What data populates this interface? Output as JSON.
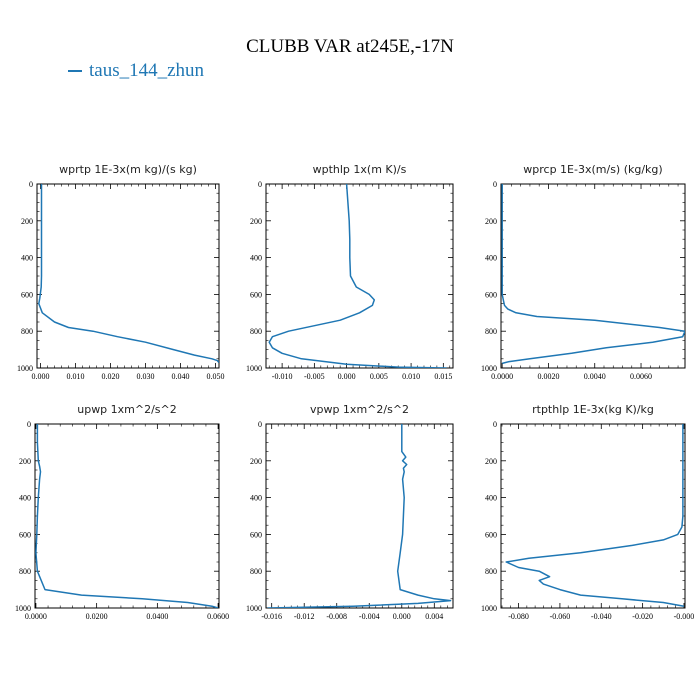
{
  "title": "CLUBB VAR at245E,-17N",
  "legend": {
    "label": "taus_144_zhun",
    "color": "#1f77b4"
  },
  "chart_data": [
    {
      "type": "line",
      "title": "wprtp  1E-3x(m kg)/(s kg)",
      "xlim": [
        -0.001,
        0.051
      ],
      "ylim": [
        1000,
        0
      ],
      "xticks": [
        0.0,
        0.01,
        0.02,
        0.03,
        0.04,
        0.05
      ],
      "xtick_labels": [
        "0.000",
        "0.010",
        "0.020",
        "0.030",
        "0.040",
        "0.050"
      ],
      "yticks": [
        0,
        200,
        400,
        600,
        800,
        1000
      ],
      "ytick_labels": [
        "0",
        "200",
        "400",
        "600",
        "800",
        "1000"
      ],
      "series": [
        {
          "color": "#1f77b4",
          "x": [
            0.0003,
            0.0003,
            0.0003,
            0.0003,
            0.0003,
            0.0003,
            0.0002,
            0.0,
            -0.0002,
            -0.0005,
            0.0005,
            0.004,
            0.008,
            0.015,
            0.022,
            0.03,
            0.038,
            0.044,
            0.049,
            0.0505,
            0.051
          ],
          "y": [
            0,
            100,
            200,
            300,
            400,
            500,
            560,
            590,
            620,
            650,
            700,
            750,
            780,
            800,
            830,
            860,
            900,
            930,
            950,
            960,
            970
          ]
        }
      ]
    },
    {
      "type": "line",
      "title": "wpthlp  1x(m K)/s",
      "xlim": [
        -0.0125,
        0.0165
      ],
      "ylim": [
        1000,
        0
      ],
      "xticks": [
        -0.01,
        -0.005,
        0.0,
        0.005,
        0.01,
        0.015
      ],
      "xtick_labels": [
        "-0.010",
        "-0.005",
        "0.000",
        "0.005",
        "0.010",
        "0.015"
      ],
      "yticks": [
        0,
        200,
        400,
        600,
        800,
        1000
      ],
      "ytick_labels": [
        "0",
        "200",
        "400",
        "600",
        "800",
        "1000"
      ],
      "series": [
        {
          "color": "#1f77b4",
          "x": [
            0.0,
            0.0002,
            0.0004,
            0.0005,
            0.0005,
            0.0006,
            0.0015,
            0.0035,
            0.0043,
            0.004,
            0.002,
            -0.001,
            -0.005,
            -0.009,
            -0.0115,
            -0.012,
            -0.0115,
            -0.01,
            -0.007,
            0.0,
            0.008,
            0.0155
          ],
          "y": [
            0,
            100,
            200,
            300,
            400,
            500,
            560,
            600,
            630,
            660,
            700,
            740,
            770,
            800,
            830,
            860,
            890,
            920,
            950,
            980,
            995,
            1000
          ]
        }
      ]
    },
    {
      "type": "line",
      "title": "wprcp  1E-3x(m/s) (kg/kg)",
      "xlim": [
        -5e-05,
        0.0079
      ],
      "ylim": [
        1000,
        0
      ],
      "xticks": [
        0.0,
        0.002,
        0.004,
        0.006
      ],
      "xtick_labels": [
        "0.0000",
        "0.0020",
        "0.0040",
        "0.0060"
      ],
      "yticks": [
        0,
        200,
        400,
        600,
        800,
        1000
      ],
      "ytick_labels": [
        "0",
        "200",
        "400",
        "600",
        "800",
        "1000"
      ],
      "series": [
        {
          "color": "#1f77b4",
          "x": [
            0.0,
            0.0,
            0.0,
            0.0,
            5e-05,
            0.0001,
            0.00025,
            0.0006,
            0.0015,
            0.004,
            0.0068,
            0.0079,
            0.0078,
            0.0065,
            0.0045,
            0.003,
            0.0012,
            0.0003,
            0.0
          ],
          "y": [
            0,
            300,
            500,
            600,
            630,
            660,
            680,
            700,
            720,
            740,
            780,
            800,
            830,
            860,
            890,
            920,
            950,
            965,
            975
          ]
        }
      ]
    },
    {
      "type": "line",
      "title": "upwp  1xm^2/s^2",
      "xlim": [
        -0.0003,
        0.0603
      ],
      "ylim": [
        1000,
        0
      ],
      "xticks": [
        0.0,
        0.02,
        0.04,
        0.06
      ],
      "xtick_labels": [
        "0.0000",
        "0.0200",
        "0.0400",
        "0.0600"
      ],
      "yticks": [
        0,
        200,
        400,
        600,
        800,
        1000
      ],
      "ytick_labels": [
        "0",
        "200",
        "400",
        "600",
        "800",
        "1000"
      ],
      "series": [
        {
          "color": "#1f77b4",
          "x": [
            0.0005,
            0.0005,
            0.0008,
            0.0012,
            0.0015,
            0.0012,
            0.0008,
            0.0005,
            0.0003,
            0.0,
            0.0005,
            0.003,
            0.015,
            0.035,
            0.05,
            0.058,
            0.06
          ],
          "y": [
            0,
            100,
            200,
            230,
            260,
            300,
            400,
            500,
            600,
            700,
            800,
            900,
            930,
            950,
            970,
            990,
            1000
          ]
        }
      ]
    },
    {
      "type": "line",
      "title": "vpwp  1xm^2/s^2",
      "xlim": [
        -0.0167,
        0.0063
      ],
      "ylim": [
        1000,
        0
      ],
      "xticks": [
        -0.016,
        -0.012,
        -0.008,
        -0.004,
        0.0,
        0.004
      ],
      "xtick_labels": [
        "-0.016",
        "-0.012",
        "-0.008",
        "-0.004",
        "0.000",
        "0.004"
      ],
      "yticks": [
        0,
        200,
        400,
        600,
        800,
        1000
      ],
      "ytick_labels": [
        "0",
        "200",
        "400",
        "600",
        "800",
        "1000"
      ],
      "series": [
        {
          "color": "#1f77b4",
          "x": [
            0.0,
            0.0,
            0.0,
            0.0,
            0.0005,
            0.0001,
            0.0006,
            0.0002,
            0.0003,
            0.0001,
            0.0003,
            0.0002,
            0.0001,
            -0.0002,
            -0.0005,
            -0.0002,
            0.002,
            0.004,
            0.006,
            0.002,
            -0.006,
            -0.0165
          ],
          "y": [
            0,
            50,
            100,
            150,
            180,
            200,
            220,
            240,
            260,
            300,
            400,
            500,
            600,
            700,
            800,
            900,
            930,
            950,
            960,
            975,
            990,
            1000
          ]
        }
      ]
    },
    {
      "type": "line",
      "title": "rtpthlp  1E-3x(kg K)/kg",
      "xlim": [
        -0.0885,
        0.0005
      ],
      "ylim": [
        1000,
        0
      ],
      "xticks": [
        -0.08,
        -0.06,
        -0.04,
        -0.02,
        0.0
      ],
      "xtick_labels": [
        "-0.080",
        "-0.060",
        "-0.040",
        "-0.020",
        "-0.000"
      ],
      "yticks": [
        0,
        200,
        400,
        600,
        800,
        1000
      ],
      "ytick_labels": [
        "0",
        "200",
        "400",
        "600",
        "800",
        "1000"
      ],
      "series": [
        {
          "color": "#1f77b4",
          "x": [
            -0.0005,
            -0.0005,
            -0.0005,
            -0.001,
            -0.003,
            -0.01,
            -0.025,
            -0.05,
            -0.075,
            -0.086,
            -0.08,
            -0.07,
            -0.065,
            -0.07,
            -0.068,
            -0.06,
            -0.05,
            -0.03,
            -0.01,
            0.0
          ],
          "y": [
            0,
            200,
            500,
            560,
            600,
            630,
            660,
            700,
            730,
            750,
            780,
            800,
            830,
            850,
            870,
            900,
            930,
            950,
            970,
            990
          ]
        }
      ]
    }
  ]
}
